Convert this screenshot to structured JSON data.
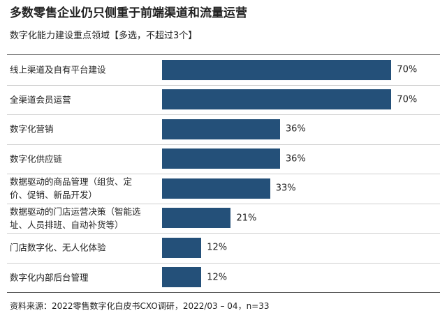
{
  "chart_data": {
    "type": "bar",
    "title": "多数零售企业仍只侧重于前端渠道和流量运营",
    "subtitle": "数字化能力建设重点领域【多选，不超过3个】",
    "categories": [
      "线上渠道及自有平台建设",
      "全渠道会员运营",
      "数字化营销",
      "数字化供应链",
      "数据驱动的商品管理（组货、定价、促销、新品开发）",
      "数据驱动的门店运营决策（智能选址、人员排班、自动补货等）",
      "门店数字化、无人化体验",
      "数字化内部后台管理"
    ],
    "values": [
      70,
      70,
      36,
      36,
      33,
      21,
      12,
      12
    ],
    "value_labels": [
      "70%",
      "70%",
      "36%",
      "36%",
      "33%",
      "21%",
      "12%",
      "12%"
    ],
    "color": "#245079",
    "source": "资料来源：2022零售数字化白皮书CXO调研，2022/03 – 04，n=33"
  }
}
